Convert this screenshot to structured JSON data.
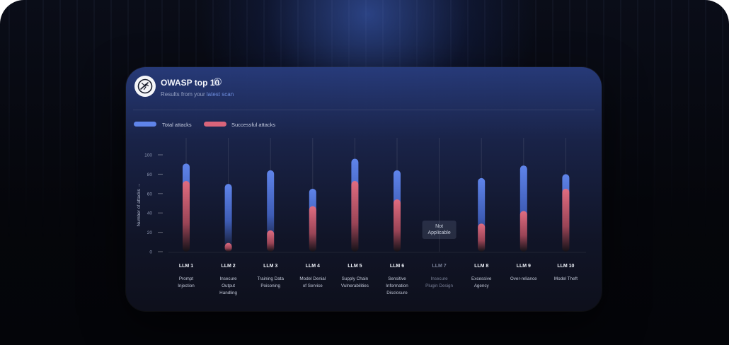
{
  "card": {
    "title": "OWASP top 10",
    "subtitle_prefix": "Results from your ",
    "subtitle_link": "latest scan",
    "info_icon": "info-icon",
    "logo_icon": "owasp-wasp-icon"
  },
  "colors": {
    "total": "#5f84ea",
    "successful": "#d9647a",
    "not_applicable_text": "#7b8299"
  },
  "chart_data": {
    "type": "bar",
    "legend": {
      "position": "top-left",
      "total_label": "Total attacks",
      "successful_label": "Successful attacks"
    },
    "ylabel": "Number of attacks →",
    "ylim": [
      0,
      100
    ],
    "yticks": [
      "0",
      "20",
      "40",
      "60",
      "80",
      "100"
    ],
    "grid": false,
    "categories": [
      {
        "code": "LLM 1",
        "name": "Prompt Injection"
      },
      {
        "code": "LLM 2",
        "name": "Insecure Output Handling"
      },
      {
        "code": "LLM 3",
        "name": "Training Data Poisoning"
      },
      {
        "code": "LLM 4",
        "name": "Model Denial of Service"
      },
      {
        "code": "LLM 5",
        "name": "Supply Chain Vulnerabilities"
      },
      {
        "code": "LLM 6",
        "name": "Sensitive Information Disclosure"
      },
      {
        "code": "LLM 7",
        "name": "Insecure Plugin Design"
      },
      {
        "code": "LLM 8",
        "name": "Excessive Agency"
      },
      {
        "code": "LLM 9",
        "name": "Over-reliance"
      },
      {
        "code": "LLM 10",
        "name": "Model Theft"
      }
    ],
    "series": [
      {
        "name": "Total attacks",
        "values": [
          91,
          70,
          84,
          65,
          96,
          84,
          null,
          76,
          89,
          80
        ]
      },
      {
        "name": "Successful attacks",
        "values": [
          73,
          9,
          22,
          47,
          73,
          54,
          null,
          29,
          42,
          65
        ]
      }
    ],
    "not_applicable": {
      "category": "LLM 7",
      "label": "Not Applicable"
    }
  }
}
